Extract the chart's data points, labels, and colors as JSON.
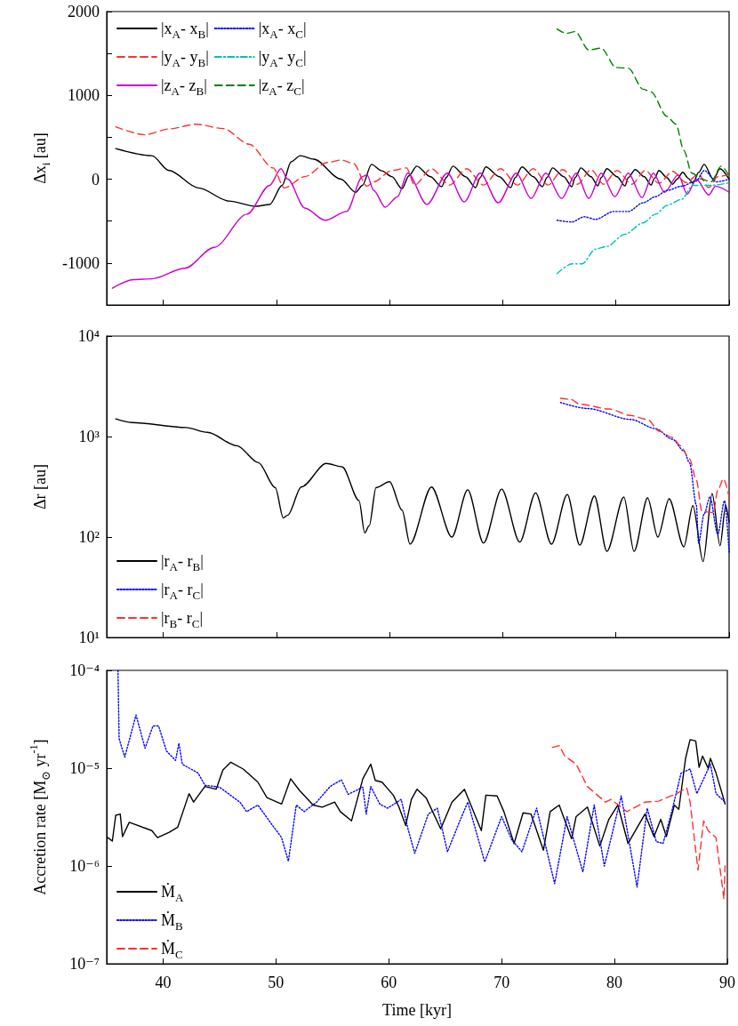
{
  "chart_data": [
    {
      "type": "line",
      "ylabel": "Δx$_{i}$ [au]",
      "xlim": [
        35,
        90
      ],
      "xticks": [
        40,
        50,
        60,
        70,
        80,
        90
      ],
      "ylim": [
        -1500,
        2000
      ],
      "yticks": [
        {
          "value": -1500,
          "label": null
        },
        -1000,
        {
          "value": -500,
          "label": null
        },
        0,
        {
          "value": 500,
          "label": null
        },
        1000,
        {
          "value": 1500,
          "label": null
        },
        2000
      ],
      "tick_labels": "y",
      "grid": false,
      "legend": "top left",
      "series": [
        {
          "name": "|x$_{A}$- x$_{B}$|",
          "color": "#000000",
          "line_style": "solid",
          "x": [
            35.8,
            39,
            40.5,
            43.1,
            45.8,
            48.2,
            49.4,
            50.5,
            51.3,
            52.1,
            53.3,
            55.7,
            57.0,
            57.6,
            58.4,
            59.3,
            60.2,
            61.1,
            61.7,
            62.4,
            63.6,
            64.6,
            65.0,
            65.6,
            66.7,
            67.6,
            68.0,
            68.5,
            69.7,
            70.7,
            71.1,
            71.7,
            72.7,
            73.5,
            73.9,
            74.4,
            75.4,
            76.1,
            76.4,
            76.9,
            77.8,
            78.4,
            78.7,
            79.2,
            80.1,
            80.8,
            81.1,
            81.7,
            82.5,
            83.1,
            83.4,
            83.8,
            84.5,
            85.0,
            85.4,
            85.9,
            86.4,
            86.8,
            87.3,
            87.8,
            88.6,
            89.2,
            90
          ],
          "values": [
            365,
            280,
            104,
            -104,
            -260,
            -323,
            -302,
            -73,
            208,
            280,
            240,
            0,
            -156,
            -73,
            177,
            100,
            31,
            -115,
            40,
            156,
            30,
            -90,
            20,
            156,
            30,
            -100,
            20,
            146,
            30,
            -100,
            20,
            146,
            30,
            -90,
            20,
            135,
            30,
            -90,
            20,
            135,
            30,
            -80,
            20,
            125,
            30,
            -80,
            20,
            115,
            30,
            -70,
            10,
            104,
            20,
            -60,
            0,
            83,
            10,
            -50,
            80,
            177,
            0,
            125,
            0
          ]
        },
        {
          "name": "|y$_{A}$- y$_{B}$|",
          "color": "#ff3030",
          "line_style": "dashed",
          "x": [
            35.8,
            38.4,
            40.5,
            42.9,
            45.3,
            47.6,
            49.7,
            50.7,
            52.5,
            54.5,
            55.7,
            56.8,
            58.0,
            58.6,
            60.2,
            61.5,
            62.2,
            63.7,
            65.3,
            66.8,
            68.3,
            69.8,
            71.3,
            72.7,
            74.0,
            75.3,
            76.6,
            77.8,
            78.9,
            80.1,
            81.4,
            82.6,
            83.8,
            85.0,
            86.2,
            87.3,
            88.2,
            89.0,
            90
          ],
          "values": [
            625,
            530,
            600,
            656,
            604,
            417,
            135,
            -104,
            31,
            200,
            229,
            188,
            -83,
            -31,
            104,
            135,
            -70,
            125,
            -70,
            125,
            -70,
            125,
            -70,
            125,
            -70,
            115,
            -60,
            115,
            -60,
            104,
            -60,
            104,
            -50,
            94,
            -40,
            60,
            -100,
            30,
            60
          ]
        },
        {
          "name": "|z$_{A}$- z$_{B}$|",
          "color": "#cc00cc",
          "line_style": "solid",
          "x": [
            35.5,
            37.4,
            39,
            41.9,
            44.5,
            47.4,
            49.4,
            50.4,
            51,
            52.5,
            54.3,
            56.2,
            57.6,
            58.0,
            58.6,
            59.6,
            60.7,
            61.6,
            63.3,
            65.1,
            66.6,
            68.0,
            69.6,
            71.2,
            72.5,
            73.8,
            75.2,
            76.5,
            77.6,
            78.7,
            79.9,
            81.1,
            82.3,
            83.3,
            84.3,
            85.5,
            86.3,
            87.1,
            88.2,
            88.8,
            90
          ],
          "values": [
            -1300,
            -1198,
            -1188,
            -1063,
            -813,
            -417,
            -73,
            125,
            0,
            -344,
            -490,
            -385,
            31,
            52,
            -135,
            -333,
            -208,
            73,
            -302,
            73,
            -271,
            73,
            -281,
            73,
            -229,
            73,
            -229,
            73,
            -229,
            73,
            -208,
            73,
            -219,
            73,
            -156,
            52,
            -177,
            0,
            -188,
            -83,
            -156
          ]
        },
        {
          "name": "|x$_{A}$- x$_{C}$|",
          "color": "#0000ff",
          "line_style": "dotted",
          "x": [
            74.8,
            76.1,
            77.2,
            78.2,
            79.8,
            81.1,
            82.4,
            83.5,
            84.5,
            85.8,
            87.1,
            87.8,
            88.9,
            90
          ],
          "values": [
            -490,
            -510,
            -448,
            -479,
            -385,
            -385,
            -281,
            -208,
            -135,
            -83,
            -21,
            104,
            -31,
            0
          ]
        },
        {
          "name": "|y$_{A}$- y$_{C}$|",
          "color": "#00bfbf",
          "line_style": "dashdot",
          "x": [
            74.8,
            76.1,
            77,
            78.2,
            79.2,
            80.8,
            82.4,
            83.5,
            84.5,
            85.8,
            86.8,
            88.4,
            90
          ],
          "values": [
            -1125,
            -1010,
            -1010,
            -833,
            -802,
            -656,
            -521,
            -417,
            -313,
            -240,
            -73,
            -73,
            -42
          ]
        },
        {
          "name": "|z$_{A}$- z$_{C}$|",
          "color": "#008000",
          "line_style": "dashed",
          "x": [
            74.8,
            75.6,
            76.4,
            77.6,
            78.7,
            80,
            81.1,
            82.4,
            83.1,
            84.5,
            85.3,
            86,
            86.7,
            87.6,
            88.4,
            89.3,
            90
          ],
          "values": [
            1792,
            1740,
            1760,
            1542,
            1563,
            1333,
            1323,
            1073,
            1042,
            750,
            656,
            344,
            73,
            0,
            -31,
            156,
            42
          ]
        }
      ]
    },
    {
      "type": "line",
      "ylabel": "Δr [au]",
      "log": "y",
      "xlim": [
        35,
        90
      ],
      "xticks": [
        40,
        50,
        60,
        70,
        80,
        90
      ],
      "ylim": [
        10,
        10000
      ],
      "yticks": [
        {
          "value": 10,
          "label": "10¹"
        },
        {
          "value": 100,
          "label": "10²"
        },
        {
          "value": 1000,
          "label": "10³"
        },
        {
          "value": 10000,
          "label": "10⁴"
        }
      ],
      "tick_labels": "y",
      "grid": false,
      "legend": "bottom left",
      "series": [
        {
          "name": "|r$_{A}$- r$_{B}$|",
          "color": "#000000",
          "line_style": "solid",
          "x": [
            35.8,
            37.2,
            42,
            43.9,
            46.5,
            48.4,
            49.9,
            50.6,
            51,
            52.2,
            54.4,
            55.8,
            57.3,
            57.8,
            58.2,
            58.8,
            60,
            61.1,
            61.8,
            63.7,
            65.5,
            66.9,
            68.3,
            69.9,
            71.5,
            72.9,
            74.3,
            75.7,
            76.8,
            78.1,
            79.2,
            80.7,
            81.6,
            82.8,
            83.7,
            84.7,
            86.0,
            86.8,
            87.7,
            88.5,
            89.2,
            89.7,
            90
          ],
          "values": [
            1500,
            1380,
            1230,
            1100,
            810,
            550,
            310,
            155,
            165,
            315,
            540,
            500,
            230,
            110,
            130,
            310,
            355,
            185,
            85,
            315,
            100,
            295,
            87,
            300,
            89,
            275,
            85,
            265,
            83,
            257,
            72,
            250,
            72,
            245,
            100,
            240,
            80,
            205,
            57,
            270,
            82,
            205,
            140
          ]
        },
        {
          "name": "|r$_{A}$- r$_{C}$|",
          "color": "#0000ff",
          "line_style": "dotted",
          "x": [
            75.1,
            77.5,
            81.3,
            83.5,
            85,
            86,
            86.5,
            87.1,
            87.3,
            87.8,
            88.3,
            89,
            89.6,
            90
          ],
          "values": [
            2180,
            1900,
            1480,
            1200,
            940,
            720,
            550,
            210,
            87,
            170,
            250,
            107,
            230,
            70
          ]
        },
        {
          "name": "|r$_{B}$- r$_{C}$|",
          "color": "#ff3030",
          "line_style": "dashed",
          "x": [
            75.1,
            76,
            76.8,
            79.4,
            81.3,
            82.8,
            83.8,
            85,
            85.7,
            86.5,
            87.1,
            87.6,
            88.6,
            89,
            89.5,
            90
          ],
          "values": [
            2400,
            2350,
            2100,
            1880,
            1620,
            1480,
            1130,
            980,
            810,
            600,
            370,
            180,
            175,
            293,
            380,
            250
          ]
        }
      ]
    },
    {
      "type": "line",
      "xlabel": "Time [kyr]",
      "ylabel": "Accretion rate [M$_{⊙}$ yr$^{-1}$]",
      "log": "y",
      "xlim": [
        35,
        90
      ],
      "xticks": [
        40,
        50,
        60,
        70,
        80,
        90
      ],
      "ylim": [
        1e-07,
        0.0001
      ],
      "yticks": [
        {
          "value": 1e-07,
          "label": "10⁻⁷"
        },
        {
          "value": 1e-06,
          "label": "10⁻⁶"
        },
        {
          "value": 1e-05,
          "label": "10⁻⁵"
        },
        {
          "value": 0.0001,
          "label": "10⁻⁴"
        }
      ],
      "grid": false,
      "legend": "bottom left",
      "series": [
        {
          "name": "Ṁ$_{A}$",
          "color": "#000000",
          "line_style": "solid",
          "x": [
            35.1,
            35.5,
            35.8,
            36.2,
            36.4,
            37,
            39,
            39.5,
            40.5,
            41.3,
            42.3,
            42.7,
            43.7,
            44.7,
            45.3,
            46,
            47.1,
            48.4,
            49.2,
            50.5,
            51.3,
            52.1,
            53.3,
            54.1,
            55.2,
            55.7,
            56.7,
            57.7,
            58.4,
            58.8,
            59.4,
            60.4,
            60.9,
            61.5,
            62.0,
            62.5,
            63.3,
            64.6,
            65.6,
            66.7,
            68.2,
            68.6,
            69.6,
            70.2,
            71.1,
            71.9,
            72.6,
            73.7,
            74.3,
            75.1,
            76.2,
            76.6,
            77.6,
            78.7,
            79.5,
            80.3,
            81.2,
            82.7,
            83.5,
            84.1,
            84.6,
            85.3,
            85.7,
            86.3,
            86.7,
            87.2,
            87.5,
            87.8,
            88.3,
            88.5,
            89,
            89.6,
            89.8
          ],
          "values": [
            1.95e-06,
            1.8e-06,
            3.3e-06,
            3.4e-06,
            2e-06,
            2.8e-06,
            2.3e-06,
            1.95e-06,
            2.2e-06,
            2.5e-06,
            5.5e-06,
            4.5e-06,
            6.5e-06,
            6.1e-06,
            9.6e-06,
            1.15e-05,
            9.8e-06,
            7.2e-06,
            5e-06,
            4.3e-06,
            7.8e-06,
            5.9e-06,
            4.2e-06,
            4e-06,
            4.5e-06,
            3.6e-06,
            2.9e-06,
            7.8e-06,
            1.1e-05,
            7.5e-06,
            7.2e-06,
            5.3e-06,
            4e-06,
            2.6e-06,
            4.8e-06,
            6.1e-06,
            5e-06,
            2.4e-06,
            4.5e-06,
            6.1e-06,
            2.3e-06,
            5.3e-06,
            5.2e-06,
            3.6e-06,
            1.7e-06,
            3.5e-06,
            3.4e-06,
            1.45e-06,
            3.6e-06,
            4.2e-06,
            1.9e-06,
            3.2e-06,
            4e-06,
            1.6e-06,
            3e-06,
            4.2e-06,
            1.7e-06,
            3.4e-06,
            2e-06,
            3e-06,
            2e-06,
            4.2e-06,
            3.8e-06,
            1.26e-05,
            1.96e-05,
            1.9e-05,
            1.02e-05,
            1.33e-05,
            1e-05,
            1.26e-05,
            8.9e-06,
            5.2e-06,
            4.3e-06
          ]
        },
        {
          "name": "Ṁ$_{B}$",
          "color": "#0000ff",
          "line_style": "dotted",
          "x": [
            36.0,
            36.1,
            36.6,
            37.6,
            38.4,
            39.1,
            39.6,
            40.3,
            41.1,
            41.4,
            41.7,
            43.1,
            43.7,
            45,
            46.8,
            47.4,
            48.4,
            49.4,
            50.5,
            51.1,
            51.8,
            52.5,
            53.6,
            54.8,
            55.8,
            56.4,
            57.7,
            58,
            58.4,
            59.2,
            59.9,
            61.1,
            61.7,
            62.3,
            63.5,
            64.3,
            65.2,
            66.3,
            67,
            68.5,
            70,
            70.9,
            71.8,
            73.1,
            74.7,
            75.8,
            77.2,
            78.2,
            79.1,
            80.6,
            82.0,
            82.9,
            83.7,
            84.3,
            85.1,
            85.9,
            86.7,
            87.3,
            88.5,
            89,
            89.8
          ],
          "values": [
            0.0001,
            2e-05,
            1.3e-05,
            3.5e-05,
            1.6e-05,
            2.7e-05,
            2.7e-05,
            1.5e-05,
            1.2e-05,
            1.8e-05,
            1.1e-05,
            8.9e-06,
            6.7e-06,
            6.4e-06,
            4.5e-06,
            3.6e-06,
            4.2e-06,
            2.9e-06,
            1.95e-06,
            1.12e-06,
            4.2e-06,
            3.6e-06,
            4.5e-06,
            6.5e-06,
            7.6e-06,
            5.4e-06,
            6.4e-06,
            3.4e-06,
            6.5e-06,
            4.3e-06,
            3.9e-06,
            4.8e-06,
            2.4e-06,
            1.35e-06,
            3.4e-06,
            3.9e-06,
            1.4e-06,
            2.9e-06,
            4.5e-06,
            1.1e-06,
            3.2e-06,
            1.85e-06,
            1.4e-06,
            3.9e-06,
            6.6e-07,
            3.2e-06,
            8.7e-07,
            4.2e-06,
            1e-06,
            5.2e-06,
            6.1e-07,
            3.9e-06,
            1.78e-06,
            1.7e-06,
            3.7e-06,
            8.9e-06,
            9.8e-06,
            5.5e-06,
            1.1e-05,
            5.5e-06,
            4.5e-06
          ]
        },
        {
          "name": "Ṁ$_{C}$",
          "color": "#ff3030",
          "line_style": "dashed",
          "x": [
            74.5,
            75.1,
            75.6,
            76.6,
            77.6,
            79.2,
            79.7,
            81.1,
            82.7,
            83.9,
            85.5,
            86.4,
            86.7,
            87.4,
            87.9,
            88.3,
            89,
            89.7,
            89.8
          ],
          "values": [
            1.63e-05,
            1.7e-05,
            1.33e-05,
            1.1e-05,
            6.5e-06,
            4.5e-06,
            4.8e-06,
            3.6e-06,
            4.5e-06,
            4.6e-06,
            5.5e-06,
            6.3e-06,
            4.5e-06,
            9.1e-07,
            2.9e-06,
            2.3e-06,
            1.95e-06,
            4.6e-07,
            1e-06
          ]
        }
      ]
    }
  ]
}
